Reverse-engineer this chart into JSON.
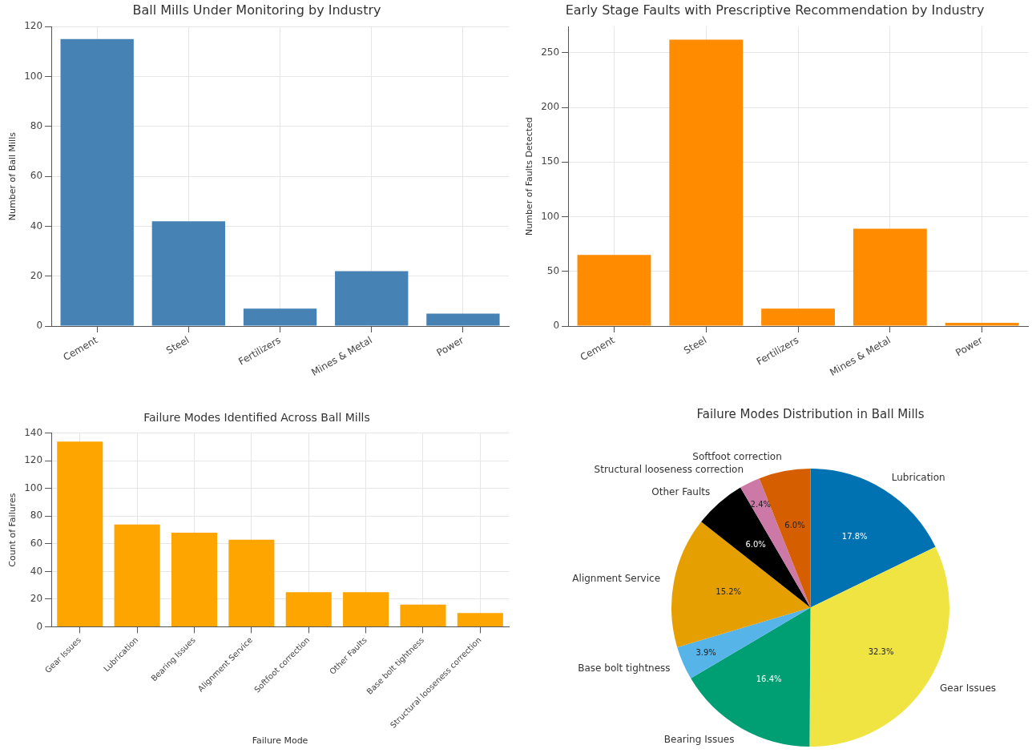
{
  "chart_data": [
    {
      "type": "bar",
      "title": "Ball Mills Under Monitoring by Industry",
      "ylabel": "Number of Ball Mills",
      "categories": [
        "Cement",
        "Steel",
        "Fertilizers",
        "Mines & Metal",
        "Power"
      ],
      "values": [
        115,
        42,
        7,
        22,
        5
      ],
      "color": "#4682b4",
      "ylim": [
        0,
        120
      ],
      "yticks": [
        0,
        20,
        40,
        60,
        80,
        100,
        120
      ],
      "grid": true,
      "legend": false
    },
    {
      "type": "bar",
      "title": "Early Stage Faults with Prescriptive Recommendation by Industry",
      "ylabel": "Number of Faults Detected",
      "categories": [
        "Cement",
        "Steel",
        "Fertilizers",
        "Mines & Metal",
        "Power"
      ],
      "values": [
        65,
        262,
        16,
        89,
        3
      ],
      "color": "#ff8c00",
      "ylim": [
        0,
        274
      ],
      "yticks": [
        0,
        50,
        100,
        150,
        200,
        250
      ],
      "grid": true,
      "legend": false
    },
    {
      "type": "bar",
      "title": "Failure Modes Identified Across Ball Mills",
      "xlabel": "Failure Mode",
      "ylabel": "Count of Failures",
      "categories": [
        "Gear Issues",
        "Lubrication",
        "Bearing Issues",
        "Alignment Service",
        "Softfoot correction",
        "Other Faults",
        "Base bolt tightness",
        "Structural looseness correction"
      ],
      "values": [
        134,
        74,
        68,
        63,
        25,
        25,
        16,
        10
      ],
      "color": "#ffa500",
      "ylim": [
        0,
        140
      ],
      "yticks": [
        0,
        20,
        40,
        60,
        80,
        100,
        120,
        140
      ],
      "grid": true,
      "legend": false
    },
    {
      "type": "pie",
      "title": "Failure Modes Distribution in Ball Mills",
      "categories": [
        "Lubrication",
        "Gear Issues",
        "Bearing Issues",
        "Base bolt tightness",
        "Alignment Service",
        "Other Faults",
        "Structural looseness correction",
        "Softfoot correction"
      ],
      "values": [
        17.8,
        32.3,
        16.4,
        3.9,
        15.2,
        6.0,
        2.4,
        6.0
      ],
      "value_labels": [
        "17.8%",
        "32.3%",
        "16.4%",
        "3.9%",
        "15.2%",
        "6.0%",
        "2.4%",
        "6.0%"
      ],
      "colors": [
        "#0072b2",
        "#f0e442",
        "#009e73",
        "#56b4e9",
        "#e69f00",
        "#000000",
        "#cc79a7",
        "#d55e00"
      ],
      "legend": false
    }
  ]
}
